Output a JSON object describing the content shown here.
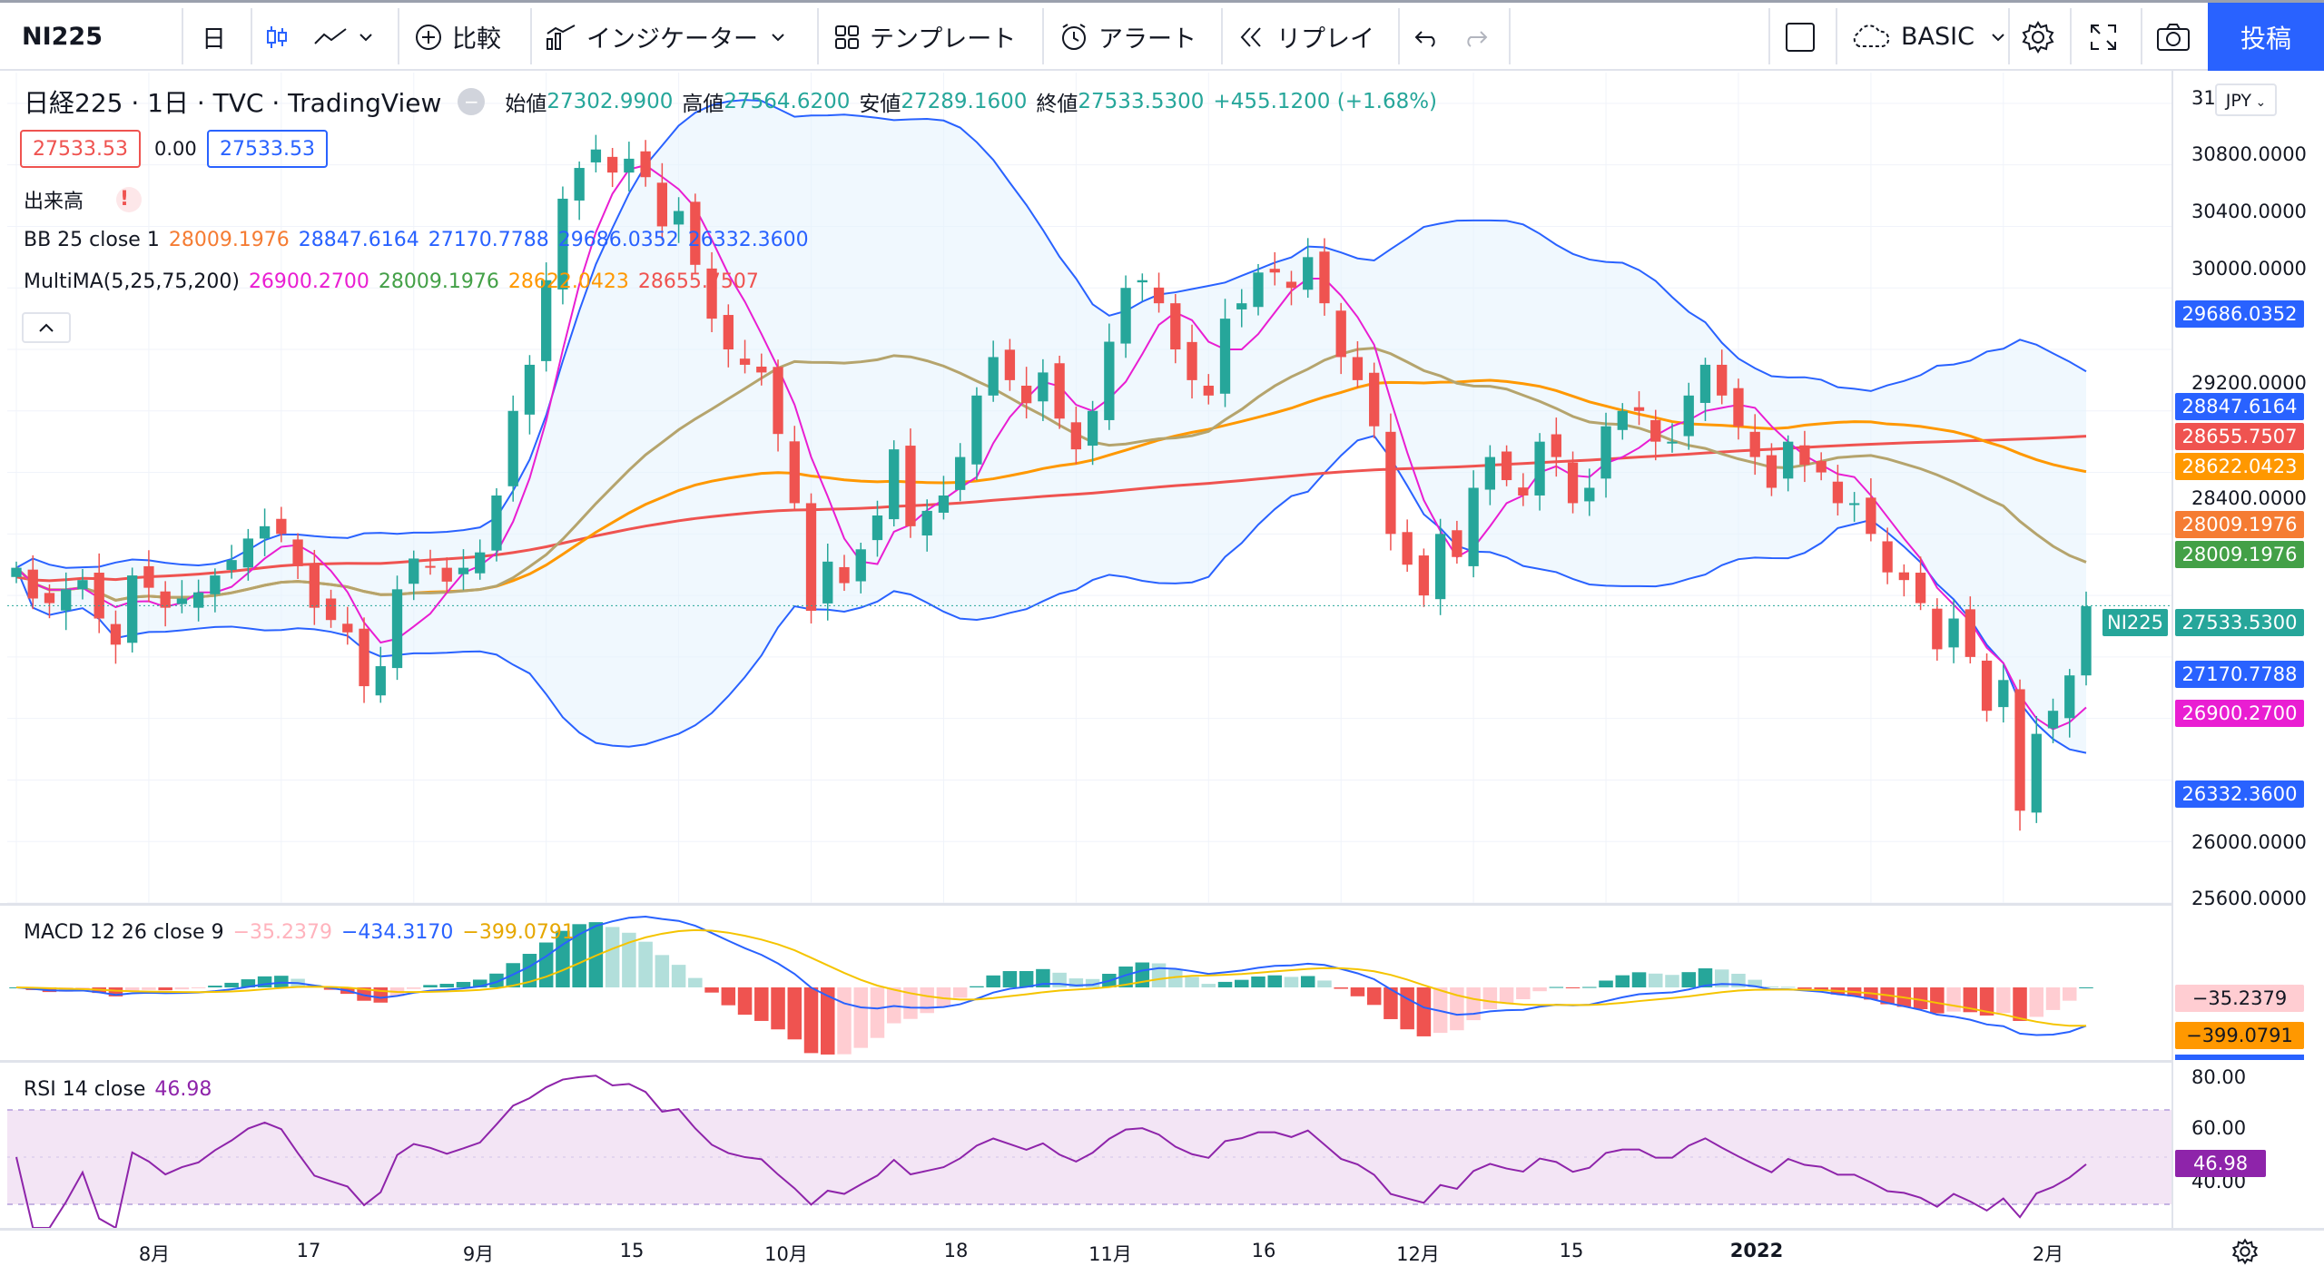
{
  "toolbar": {
    "symbol": "NI225",
    "interval": "日",
    "compare_label": "比較",
    "indicators_label": "インジケーター",
    "templates_label": "テンプレート",
    "alert_label": "アラート",
    "replay_label": "リプレイ",
    "layout_name": "BASIC",
    "post_label": "投稿"
  },
  "legend": {
    "title": "日経225 · 1日 · TVC · TradingView",
    "ohlc": {
      "open_label": "始値",
      "open": "27302.9900",
      "high_label": "高値",
      "high": "27564.6200",
      "low_label": "安値",
      "low": "27289.1600",
      "close_label": "終値",
      "close": "27533.5300",
      "change": "+455.1200 (+1.68%)"
    },
    "bid": "27533.53",
    "spread": "0.00",
    "ask": "27533.53",
    "volume_label": "出来高",
    "volume_warning": "!",
    "bb": {
      "label": "BB 25 close 1",
      "v1": "28009.1976",
      "v2": "28847.6164",
      "v3": "27170.7788",
      "v4": "29686.0352",
      "v5": "26332.3600"
    },
    "ma": {
      "label": "MultiMA(5,25,75,200)",
      "v1": "26900.2700",
      "v2": "28009.1976",
      "v3": "28622.0423",
      "v4": "28655.7507"
    },
    "macd": {
      "label": "MACD 12 26 close 9",
      "v1": "−35.2379",
      "v2": "−434.3170",
      "v3": "−399.0791"
    },
    "rsi": {
      "label": "RSI 14 close",
      "v1": "46.98"
    }
  },
  "axis": {
    "currency": "JPY",
    "price_ticks": [
      "31",
      "30800.0000",
      "30400.0000",
      "30000.0000",
      "29200.0000",
      "28400.0000",
      "26000.0000",
      "25600.0000"
    ],
    "price_labels": [
      {
        "text": "29686.0352",
        "color": "#2962ff"
      },
      {
        "text": "28847.6164",
        "color": "#2962ff"
      },
      {
        "text": "28655.7507",
        "color": "#ef5350"
      },
      {
        "text": "28622.0423",
        "color": "#ff9800"
      },
      {
        "text": "28009.1976",
        "color": "#f57c33"
      },
      {
        "text": "28009.1976",
        "color": "#43a047"
      },
      {
        "text": "27533.5300",
        "color": "#26a69a"
      },
      {
        "text": "27170.7788",
        "color": "#2962ff"
      },
      {
        "text": "26900.2700",
        "color": "#e91ed2"
      },
      {
        "text": "26332.3600",
        "color": "#2962ff"
      }
    ],
    "symbol_tag": "NI225",
    "macd_labels": [
      {
        "text": "−35.2379",
        "color": "#ffcdd2"
      },
      {
        "text": "−399.0791",
        "color": "#ff9800"
      }
    ],
    "rsi_ticks": [
      "80.00",
      "60.00",
      "40.00"
    ],
    "rsi_label": "46.98",
    "x_ticks": [
      "8月",
      "17",
      "9月",
      "15",
      "10月",
      "18",
      "11月",
      "16",
      "12月",
      "15",
      "2022",
      "2月"
    ]
  },
  "colors": {
    "up": "#26a69a",
    "down": "#ef5350",
    "bb": "#2962ff",
    "bb_fill": "#e3f2fd",
    "ma5": "#e91ed2",
    "ma25": "#b5a46d",
    "ma75": "#ff9800",
    "ma200": "#ef5350",
    "macd": "#2962ff",
    "signal": "#f5c400",
    "rsi": "#8e24aa",
    "rsi_band": "#f3e5f5"
  },
  "chart_data": {
    "type": "candlestick",
    "symbol": "NI225",
    "interval": "1日",
    "last_bar": {
      "open": 27302.99,
      "high": 27564.62,
      "low": 27289.16,
      "close": 27533.53,
      "change": 455.12,
      "change_pct": 1.68
    },
    "closes": [
      27780,
      27580,
      27550,
      27640,
      27700,
      27450,
      27280,
      27730,
      27650,
      27520,
      27580,
      27620,
      27730,
      27830,
      27970,
      28050,
      28000,
      27790,
      27520,
      27440,
      27360,
      27010,
      27140,
      27640,
      27840,
      27780,
      27690,
      27780,
      27880,
      28250,
      28800,
      29100,
      29650,
      30180,
      30380,
      30500,
      30350,
      30440,
      30320,
      30000,
      30100,
      29750,
      29400,
      29200,
      29100,
      29050,
      28650,
      28200,
      27500,
      27820,
      27680,
      27900,
      28120,
      28550,
      28050,
      28150,
      28250,
      28500,
      28900,
      29150,
      29000,
      28850,
      29050,
      28750,
      28550,
      28800,
      29250,
      29600,
      29650,
      29500,
      29200,
      29000,
      28900,
      29400,
      29500,
      29700,
      29700,
      29600,
      29800,
      29500,
      29150,
      29000,
      28700,
      28000,
      27800,
      27600,
      28000,
      27850,
      28300,
      28500,
      28350,
      28250,
      28600,
      28500,
      28200,
      28300,
      28700,
      28800,
      28800,
      28600,
      28600,
      28900,
      29100,
      28900,
      28700,
      28500,
      28300,
      28600,
      28450,
      28400,
      28200,
      28200,
      28000,
      27750,
      27700,
      27550,
      27250,
      27450,
      27200,
      26850,
      27050,
      26200,
      26700,
      26850,
      27080,
      27530
    ],
    "bb": {
      "upper_last": 29686.0352,
      "basis_last": 28009.1976,
      "lower_last": 26332.36
    },
    "ma": {
      "ma5_last": 26900.27,
      "ma25_last": 28009.1976,
      "ma75_last": 28622.0423,
      "ma200_last": 28655.7507
    },
    "macd": {
      "hist_last": -35.2379,
      "macd_last": -434.317,
      "signal_last": -399.0791
    },
    "rsi": {
      "last": 46.98,
      "bands": [
        30,
        70
      ]
    },
    "price_range": [
      25600,
      31000
    ]
  }
}
